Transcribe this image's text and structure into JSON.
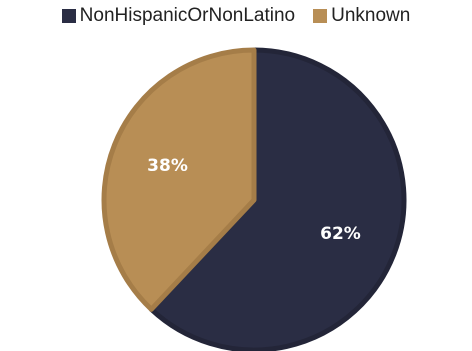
{
  "chart_data": {
    "type": "pie",
    "title": "",
    "legend_position": "top",
    "categories": [
      "NonHispanicOrNonLatino",
      "Unknown"
    ],
    "values": [
      62,
      38
    ],
    "data_labels": [
      "62%",
      "38%"
    ],
    "colors": [
      "#2a2d44",
      "#b88e55"
    ],
    "border_colors": [
      "#232538",
      "#a57d48"
    ],
    "start_angle_deg": 0,
    "direction": "clockwise"
  }
}
